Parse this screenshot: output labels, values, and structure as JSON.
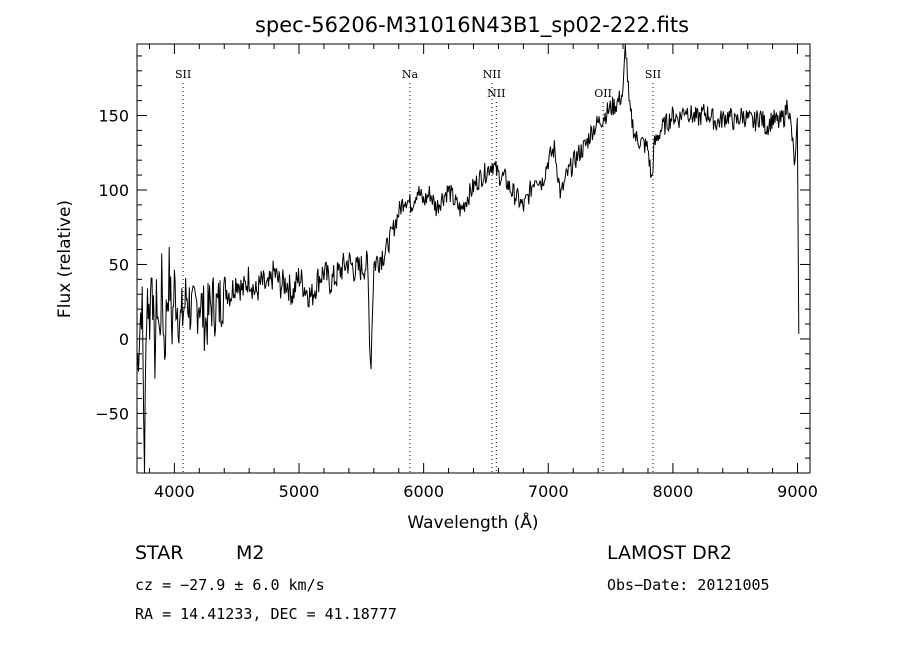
{
  "chart_data": {
    "type": "line",
    "title": "spec-56206-M31016N43B1_sp02-222.fits",
    "xlabel": "Wavelength (Å)",
    "ylabel": "Flux (relative)",
    "xlim": [
      3700,
      9100
    ],
    "ylim": [
      -90,
      198
    ],
    "xticks": [
      4000,
      5000,
      6000,
      7000,
      8000,
      9000
    ],
    "yticks": [
      -50,
      0,
      50,
      100,
      150
    ],
    "grid": false,
    "line_color": "#000000",
    "series": [
      {
        "values": [
          [
            3700,
            -20
          ],
          [
            3740,
            30
          ],
          [
            3760,
            -85
          ],
          [
            3780,
            40
          ],
          [
            3800,
            10
          ],
          [
            3820,
            55
          ],
          [
            3840,
            -20
          ],
          [
            3860,
            30
          ],
          [
            3880,
            0
          ],
          [
            3900,
            40
          ],
          [
            3920,
            -10
          ],
          [
            3940,
            25
          ],
          [
            3960,
            45
          ],
          [
            3980,
            5
          ],
          [
            4000,
            35
          ],
          [
            4050,
            10
          ],
          [
            4100,
            30
          ],
          [
            4150,
            15
          ],
          [
            4200,
            28
          ],
          [
            4250,
            10
          ],
          [
            4300,
            25
          ],
          [
            4350,
            20
          ],
          [
            4400,
            35
          ],
          [
            4450,
            30
          ],
          [
            4500,
            40
          ],
          [
            4550,
            32
          ],
          [
            4600,
            42
          ],
          [
            4650,
            30
          ],
          [
            4700,
            38
          ],
          [
            4750,
            33
          ],
          [
            4800,
            45
          ],
          [
            4850,
            36
          ],
          [
            4900,
            38
          ],
          [
            4950,
            30
          ],
          [
            5000,
            42
          ],
          [
            5050,
            34
          ],
          [
            5100,
            28
          ],
          [
            5150,
            40
          ],
          [
            5200,
            45
          ],
          [
            5250,
            38
          ],
          [
            5300,
            42
          ],
          [
            5350,
            48
          ],
          [
            5400,
            52
          ],
          [
            5450,
            46
          ],
          [
            5500,
            48
          ],
          [
            5550,
            50
          ],
          [
            5575,
            -22
          ],
          [
            5600,
            50
          ],
          [
            5650,
            55
          ],
          [
            5700,
            60
          ],
          [
            5750,
            72
          ],
          [
            5800,
            85
          ],
          [
            5850,
            95
          ],
          [
            5900,
            90
          ],
          [
            5950,
            100
          ],
          [
            6000,
            92
          ],
          [
            6050,
            98
          ],
          [
            6100,
            88
          ],
          [
            6150,
            95
          ],
          [
            6200,
            100
          ],
          [
            6250,
            92
          ],
          [
            6300,
            86
          ],
          [
            6350,
            95
          ],
          [
            6400,
            102
          ],
          [
            6450,
            108
          ],
          [
            6500,
            112
          ],
          [
            6550,
            118
          ],
          [
            6600,
            110
          ],
          [
            6650,
            108
          ],
          [
            6700,
            100
          ],
          [
            6750,
            95
          ],
          [
            6800,
            88
          ],
          [
            6850,
            98
          ],
          [
            6900,
            110
          ],
          [
            6950,
            105
          ],
          [
            7000,
            120
          ],
          [
            7050,
            128
          ],
          [
            7100,
            96
          ],
          [
            7150,
            110
          ],
          [
            7200,
            118
          ],
          [
            7250,
            125
          ],
          [
            7300,
            130
          ],
          [
            7350,
            140
          ],
          [
            7400,
            145
          ],
          [
            7450,
            150
          ],
          [
            7500,
            155
          ],
          [
            7550,
            158
          ],
          [
            7600,
            165
          ],
          [
            7620,
            200
          ],
          [
            7650,
            155
          ],
          [
            7700,
            135
          ],
          [
            7750,
            132
          ],
          [
            7800,
            128
          ],
          [
            7830,
            105
          ],
          [
            7850,
            130
          ],
          [
            7900,
            140
          ],
          [
            7950,
            145
          ],
          [
            8000,
            150
          ],
          [
            8050,
            148
          ],
          [
            8100,
            155
          ],
          [
            8150,
            150
          ],
          [
            8200,
            148
          ],
          [
            8250,
            152
          ],
          [
            8300,
            150
          ],
          [
            8350,
            145
          ],
          [
            8400,
            148
          ],
          [
            8450,
            150
          ],
          [
            8500,
            145
          ],
          [
            8550,
            150
          ],
          [
            8600,
            148
          ],
          [
            8650,
            145
          ],
          [
            8700,
            150
          ],
          [
            8750,
            142
          ],
          [
            8800,
            148
          ],
          [
            8850,
            145
          ],
          [
            8900,
            150
          ],
          [
            8920,
            160
          ],
          [
            8950,
            140
          ],
          [
            8980,
            115
          ],
          [
            9000,
            145
          ],
          [
            9010,
            0
          ]
        ]
      }
    ],
    "lines": [
      {
        "label": "SII",
        "x": 4070,
        "row": 1
      },
      {
        "label": "Na",
        "x": 5890,
        "row": 1
      },
      {
        "label": "NII",
        "x": 6548,
        "row": 1
      },
      {
        "label": "NII",
        "x": 6583,
        "row": 2
      },
      {
        "label": "OII",
        "x": 7440,
        "row": 2
      },
      {
        "label": "SII",
        "x": 7840,
        "row": 1
      }
    ]
  },
  "info": {
    "class": "STAR",
    "subclass": "M2",
    "survey": "LAMOST DR2",
    "cz": "cz = −27.9 ± 6.0 km/s",
    "obs_date": "Obs−Date: 20121005",
    "coords": "RA =  14.41233, DEC =  41.18777"
  }
}
